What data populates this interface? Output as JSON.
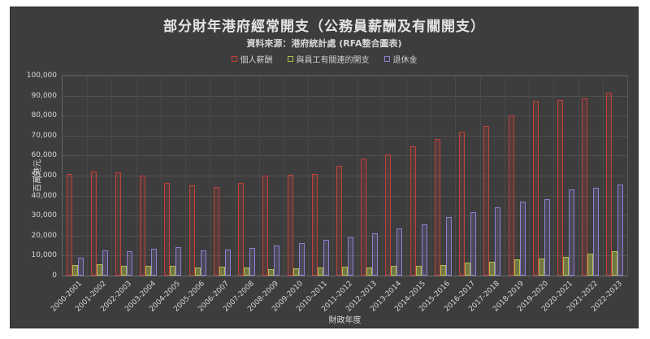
{
  "header": {
    "title": "部分財年港府經常開支（公務員薪酬及有關開支）",
    "subtitle": "資料來源：港府統計處 (RFA整合圖表)"
  },
  "colors": {
    "panel_bg": "#3d3d3d",
    "grid": "#515151",
    "text": "#d9d9d9",
    "series_red": "#c0413a",
    "series_green": "#b2bc4e",
    "series_purple": "#8f7fd4"
  },
  "chart_data": {
    "type": "bar",
    "title": "部分財年港府經常開支（公務員薪酬及有關開支）",
    "subtitle": "資料來源：港府統計處 (RFA整合圖表)",
    "xlabel": "財政年度",
    "ylabel": "百萬港元",
    "ylim": [
      0,
      100000
    ],
    "y_tick_step": 10000,
    "y_tick_labels": [
      "0",
      "10,000",
      "20,000",
      "30,000",
      "40,000",
      "50,000",
      "60,000",
      "70,000",
      "80,000",
      "90,000",
      "100,000"
    ],
    "grid": true,
    "legend_position": "top",
    "categories": [
      "2000-2001",
      "2001-2002",
      "2002-2003",
      "2003-2004",
      "2004-2005",
      "2005-2006",
      "2006-2007",
      "2007-2008",
      "2008-2009",
      "2009-2010",
      "2010-2011",
      "2011-2012",
      "2012-2013",
      "2013-2014",
      "2014-2015",
      "2015-2016",
      "2016-2017",
      "2017-2018",
      "2018-2019",
      "2019-2020",
      "2020-2021",
      "2021-2022",
      "2022-2023"
    ],
    "series": [
      {
        "name": "個人薪酬",
        "outline": "#c0413a",
        "fill": "rgba(192,65,58,0.16)",
        "values": [
          51000,
          52000,
          51500,
          50000,
          46500,
          45000,
          44500,
          46500,
          50000,
          50500,
          51000,
          55000,
          58500,
          60500,
          64500,
          68500,
          72000,
          75000,
          80000,
          87500,
          88000,
          88500,
          91500
        ]
      },
      {
        "name": "與員工有關連的開支",
        "outline": "#b2bc4e",
        "fill": "rgba(178,188,78,0.45)",
        "values": [
          5200,
          5500,
          5000,
          4800,
          4800,
          4200,
          4300,
          4000,
          3400,
          3600,
          4000,
          4400,
          4100,
          4700,
          4900,
          5300,
          6400,
          7000,
          8000,
          8500,
          9500,
          11000,
          12000
        ]
      },
      {
        "name": "退休金",
        "outline": "#8f7fd4",
        "fill": "rgba(143,127,212,0.20)",
        "values": [
          9000,
          12800,
          12000,
          13300,
          14300,
          12500,
          13200,
          14000,
          15000,
          16300,
          17800,
          19300,
          21300,
          23500,
          25500,
          29300,
          31700,
          34000,
          36800,
          38400,
          43000,
          44000,
          45500
        ]
      }
    ]
  }
}
